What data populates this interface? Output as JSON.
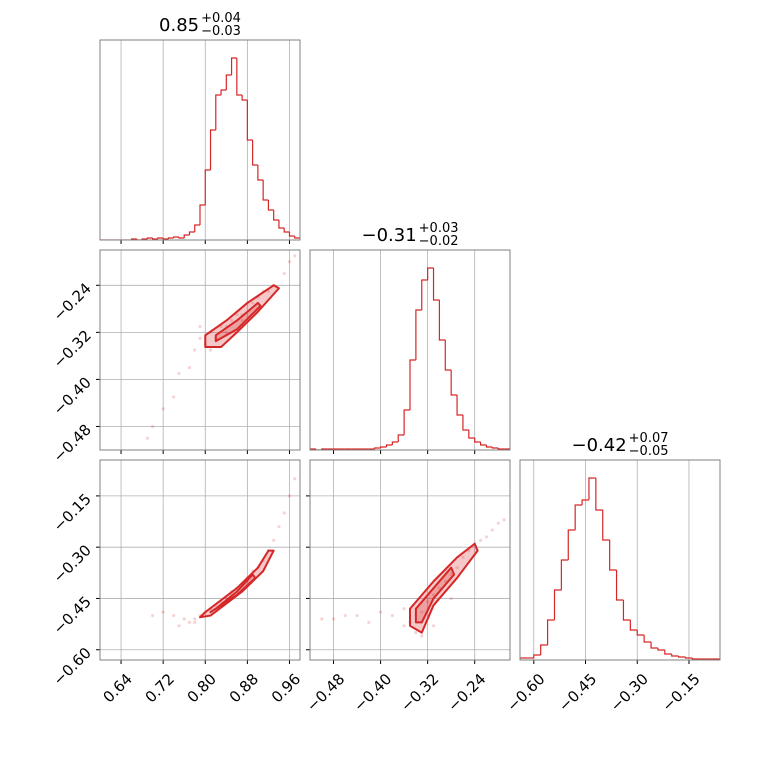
{
  "chart_data": [
    {
      "type": "histogram",
      "color": "#d62728",
      "grid": true,
      "title": "0.85",
      "title_upper": "+0.04",
      "title_lower": "−0.03",
      "xlim": [
        0.6,
        0.98
      ],
      "xticks": [
        0.64,
        0.72,
        {
          "value": 0.8,
          "label": "0.80"
        },
        0.88,
        0.96
      ],
      "ylim": [
        0,
        200
      ],
      "bins": [
        0.6,
        0.61,
        0.62,
        0.63,
        0.64,
        0.65,
        0.66,
        0.67,
        0.68,
        0.69,
        0.7,
        0.71,
        0.72,
        0.73,
        0.74,
        0.75,
        0.76,
        0.77,
        0.78,
        0.79,
        0.8,
        0.81,
        0.82,
        0.83,
        0.84,
        0.85,
        0.86,
        0.87,
        0.88,
        0.89,
        0.9,
        0.91,
        0.92,
        0.93,
        0.94,
        0.95,
        0.96,
        0.97,
        0.98
      ],
      "values": [
        0,
        0,
        0,
        0,
        0,
        0,
        1,
        0,
        1,
        2,
        1,
        2,
        1,
        2,
        3,
        2,
        5,
        8,
        15,
        35,
        70,
        110,
        145,
        150,
        165,
        182,
        145,
        140,
        100,
        75,
        60,
        40,
        30,
        20,
        12,
        8,
        4,
        2
      ]
    },
    {
      "type": "scatter",
      "color": "#d62728",
      "grid": true,
      "xlim": [
        0.6,
        0.98
      ],
      "xticks": [
        0.64,
        0.72,
        0.8,
        0.88,
        0.96
      ],
      "ylim": [
        -0.52,
        -0.18
      ],
      "yticks": [
        {
          "value": -0.24,
          "label": "−0.24"
        },
        {
          "value": -0.32,
          "label": "−0.32"
        },
        {
          "value": -0.4,
          "label": "−0.40"
        },
        {
          "value": -0.48,
          "label": "−0.48"
        }
      ],
      "x": [
        0.69,
        0.7,
        0.72,
        0.74,
        0.75,
        0.77,
        0.78,
        0.79,
        0.8,
        0.81,
        0.82,
        0.83,
        0.84,
        0.85,
        0.86,
        0.87,
        0.88,
        0.89,
        0.9,
        0.91,
        0.92,
        0.93,
        0.95,
        0.96,
        0.97,
        0.79,
        0.81,
        0.84,
        0.87,
        0.9
      ],
      "y": [
        -0.5,
        -0.48,
        -0.45,
        -0.43,
        -0.39,
        -0.38,
        -0.35,
        -0.33,
        -0.34,
        -0.32,
        -0.33,
        -0.31,
        -0.31,
        -0.3,
        -0.29,
        -0.29,
        -0.27,
        -0.27,
        -0.26,
        -0.25,
        -0.25,
        -0.24,
        -0.22,
        -0.2,
        -0.19,
        -0.31,
        -0.35,
        -0.32,
        -0.3,
        -0.28
      ],
      "contours": [
        {
          "x": [
            0.8,
            0.8,
            0.84,
            0.88,
            0.93,
            0.94,
            0.9,
            0.86,
            0.83
          ],
          "y": [
            -0.345,
            -0.325,
            -0.3,
            -0.27,
            -0.24,
            -0.245,
            -0.285,
            -0.32,
            -0.345
          ]
        },
        {
          "x": [
            0.82,
            0.82,
            0.86,
            0.9,
            0.905,
            0.86
          ],
          "y": [
            -0.335,
            -0.325,
            -0.3,
            -0.27,
            -0.275,
            -0.315
          ]
        }
      ]
    },
    {
      "type": "histogram",
      "color": "#d62728",
      "grid": true,
      "title": "−0.31",
      "title_upper": "+0.03",
      "title_lower": "−0.02",
      "xlim": [
        -0.52,
        -0.18
      ],
      "xticks": [
        -0.48,
        -0.4,
        -0.32,
        -0.24
      ],
      "ylim": [
        0,
        200
      ],
      "bins": [
        -0.52,
        -0.51,
        -0.5,
        -0.49,
        -0.48,
        -0.47,
        -0.46,
        -0.45,
        -0.44,
        -0.43,
        -0.42,
        -0.41,
        -0.4,
        -0.39,
        -0.38,
        -0.37,
        -0.36,
        -0.35,
        -0.34,
        -0.33,
        -0.32,
        -0.31,
        -0.3,
        -0.29,
        -0.28,
        -0.27,
        -0.26,
        -0.25,
        -0.24,
        -0.23,
        -0.22,
        -0.21,
        -0.2,
        -0.19,
        -0.18
      ],
      "values": [
        1,
        0,
        1,
        1,
        1,
        1,
        1,
        1,
        1,
        1,
        1,
        2,
        3,
        5,
        8,
        15,
        40,
        90,
        140,
        170,
        182,
        150,
        110,
        80,
        55,
        35,
        20,
        12,
        8,
        5,
        3,
        2,
        1,
        1
      ]
    },
    {
      "type": "scatter",
      "color": "#d62728",
      "grid": true,
      "xlim": [
        0.6,
        0.98
      ],
      "xticks": [
        0.64,
        0.72,
        {
          "value": 0.8,
          "label": "0.80"
        },
        0.88,
        0.96
      ],
      "ylim": [
        -0.63,
        -0.045
      ],
      "yticks": [
        {
          "value": -0.15,
          "label": "−0.15"
        },
        {
          "value": -0.3,
          "label": "−0.30"
        },
        {
          "value": -0.45,
          "label": "−0.45"
        },
        {
          "value": -0.6,
          "label": "−0.60"
        }
      ],
      "x": [
        0.7,
        0.72,
        0.74,
        0.76,
        0.77,
        0.78,
        0.79,
        0.8,
        0.81,
        0.82,
        0.83,
        0.84,
        0.85,
        0.86,
        0.87,
        0.88,
        0.89,
        0.9,
        0.91,
        0.92,
        0.93,
        0.94,
        0.95,
        0.96,
        0.97,
        0.75,
        0.78,
        0.82,
        0.85,
        0.88
      ],
      "y": [
        -0.5,
        -0.49,
        -0.5,
        -0.51,
        -0.52,
        -0.51,
        -0.5,
        -0.49,
        -0.48,
        -0.47,
        -0.46,
        -0.45,
        -0.43,
        -0.42,
        -0.41,
        -0.39,
        -0.37,
        -0.36,
        -0.34,
        -0.31,
        -0.28,
        -0.24,
        -0.2,
        -0.15,
        -0.1,
        -0.53,
        -0.52,
        -0.48,
        -0.44,
        -0.4
      ],
      "contours": [
        {
          "x": [
            0.79,
            0.8,
            0.86,
            0.9,
            0.92,
            0.93,
            0.91,
            0.87,
            0.81
          ],
          "y": [
            -0.505,
            -0.49,
            -0.42,
            -0.36,
            -0.31,
            -0.31,
            -0.37,
            -0.43,
            -0.5
          ]
        },
        {
          "x": [
            0.81,
            0.82,
            0.86,
            0.89,
            0.895,
            0.86
          ],
          "y": [
            -0.49,
            -0.48,
            -0.43,
            -0.38,
            -0.39,
            -0.44
          ]
        }
      ]
    },
    {
      "type": "scatter",
      "color": "#d62728",
      "grid": true,
      "xlim": [
        -0.52,
        -0.18
      ],
      "xticks": [
        {
          "value": -0.48,
          "label": "−0.48"
        },
        {
          "value": -0.4,
          "label": "−0.40"
        },
        {
          "value": -0.32,
          "label": "−0.32"
        },
        {
          "value": -0.24,
          "label": "−0.24"
        }
      ],
      "ylim": [
        -0.63,
        -0.045
      ],
      "yticks": [
        -0.15,
        -0.3,
        -0.45,
        -0.6
      ],
      "x": [
        -0.5,
        -0.48,
        -0.46,
        -0.44,
        -0.42,
        -0.4,
        -0.38,
        -0.36,
        -0.35,
        -0.34,
        -0.33,
        -0.32,
        -0.31,
        -0.3,
        -0.29,
        -0.28,
        -0.27,
        -0.26,
        -0.25,
        -0.24,
        -0.23,
        -0.22,
        -0.21,
        -0.2,
        -0.19,
        -0.33,
        -0.31,
        -0.28,
        -0.36,
        -0.34
      ],
      "y": [
        -0.51,
        -0.51,
        -0.5,
        -0.5,
        -0.52,
        -0.49,
        -0.5,
        -0.53,
        -0.52,
        -0.5,
        -0.49,
        -0.46,
        -0.44,
        -0.42,
        -0.4,
        -0.38,
        -0.36,
        -0.33,
        -0.31,
        -0.29,
        -0.28,
        -0.27,
        -0.25,
        -0.23,
        -0.22,
        -0.56,
        -0.53,
        -0.45,
        -0.48,
        -0.55
      ],
      "contours": [
        {
          "x": [
            -0.35,
            -0.35,
            -0.31,
            -0.27,
            -0.24,
            -0.235,
            -0.27,
            -0.31,
            -0.33
          ],
          "y": [
            -0.53,
            -0.48,
            -0.4,
            -0.33,
            -0.29,
            -0.31,
            -0.39,
            -0.47,
            -0.55
          ]
        },
        {
          "x": [
            -0.34,
            -0.34,
            -0.31,
            -0.28,
            -0.275,
            -0.31,
            -0.33
          ],
          "y": [
            -0.52,
            -0.48,
            -0.42,
            -0.36,
            -0.38,
            -0.45,
            -0.52
          ]
        }
      ]
    },
    {
      "type": "histogram",
      "color": "#d62728",
      "grid": true,
      "title": "−0.42",
      "title_upper": "+0.07",
      "title_lower": "−0.05",
      "xlim": [
        -0.64,
        -0.06
      ],
      "xticks": [
        {
          "value": -0.6,
          "label": "−0.60"
        },
        {
          "value": -0.45,
          "label": "−0.45"
        },
        {
          "value": -0.3,
          "label": "−0.30"
        },
        {
          "value": -0.15,
          "label": "−0.15"
        }
      ],
      "ylim": [
        0,
        200
      ],
      "bins": [
        -0.64,
        -0.62,
        -0.6,
        -0.58,
        -0.56,
        -0.54,
        -0.52,
        -0.5,
        -0.48,
        -0.46,
        -0.44,
        -0.42,
        -0.4,
        -0.38,
        -0.36,
        -0.34,
        -0.32,
        -0.3,
        -0.28,
        -0.26,
        -0.24,
        -0.22,
        -0.2,
        -0.18,
        -0.16,
        -0.14,
        -0.12,
        -0.1,
        -0.08,
        -0.06
      ],
      "values": [
        2,
        2,
        5,
        15,
        40,
        70,
        100,
        130,
        155,
        160,
        182,
        150,
        120,
        90,
        60,
        40,
        30,
        25,
        18,
        12,
        10,
        6,
        4,
        3,
        2,
        1,
        1,
        1,
        1
      ]
    }
  ]
}
